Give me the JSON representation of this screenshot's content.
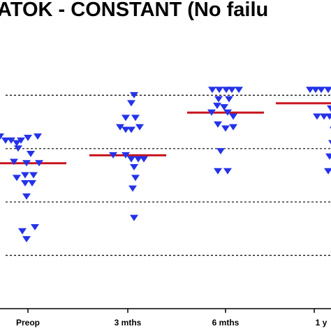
{
  "chart_data": {
    "type": "scatter",
    "title": "ATOK - CONSTANT (No failu",
    "categories": [
      "Preop",
      "3 mths",
      "6 mths",
      "1 y"
    ],
    "ylim": [
      0,
      100
    ],
    "gridlines": [
      20,
      40,
      60,
      80
    ],
    "grid": "dashed horizontal",
    "marker": "down-triangle",
    "colors": {
      "points": "#2433e8",
      "median": "#c8141e",
      "grid": "#000000",
      "axis": "#000000"
    },
    "series": [
      {
        "category": "Preop",
        "median": 54.5,
        "points": [
          {
            "x": -0.47,
            "y": 64.5
          },
          {
            "x": -0.4,
            "y": 64.5
          },
          {
            "x": -0.32,
            "y": 63
          },
          {
            "x": -0.24,
            "y": 63
          },
          {
            "x": -0.16,
            "y": 62
          },
          {
            "x": -0.1,
            "y": 63
          },
          {
            "x": 0.0,
            "y": 64
          },
          {
            "x": 0.14,
            "y": 64.5
          },
          {
            "x": -0.14,
            "y": 60
          },
          {
            "x": 0.04,
            "y": 58
          },
          {
            "x": -0.2,
            "y": 55
          },
          {
            "x": -0.02,
            "y": 54.5
          },
          {
            "x": 0.16,
            "y": 54.5
          },
          {
            "x": -0.04,
            "y": 50
          },
          {
            "x": 0.08,
            "y": 50
          },
          {
            "x": -0.16,
            "y": 49
          },
          {
            "x": -0.04,
            "y": 47
          },
          {
            "x": 0.06,
            "y": 47
          },
          {
            "x": -0.02,
            "y": 42
          },
          {
            "x": 0.1,
            "y": 30.5
          },
          {
            "x": -0.08,
            "y": 29
          },
          {
            "x": -0.02,
            "y": 26
          }
        ]
      },
      {
        "category": "3 mths",
        "median": 57.5,
        "points": [
          {
            "x": 0.09,
            "y": 80
          },
          {
            "x": 0.05,
            "y": 77
          },
          {
            "x": -0.03,
            "y": 71.5
          },
          {
            "x": 0.11,
            "y": 71.5
          },
          {
            "x": -0.11,
            "y": 68
          },
          {
            "x": -0.03,
            "y": 67
          },
          {
            "x": 0.05,
            "y": 67
          },
          {
            "x": 0.17,
            "y": 68
          },
          {
            "x": -0.21,
            "y": 57.5
          },
          {
            "x": -0.03,
            "y": 57.5
          },
          {
            "x": 0.05,
            "y": 56
          },
          {
            "x": 0.15,
            "y": 56
          },
          {
            "x": 0.23,
            "y": 56
          },
          {
            "x": 0.09,
            "y": 53
          },
          {
            "x": 0.11,
            "y": 49
          },
          {
            "x": 0.07,
            "y": 45
          },
          {
            "x": 0.09,
            "y": 34
          }
        ]
      },
      {
        "category": "6 mths",
        "median": 73.5,
        "points": [
          {
            "x": -0.19,
            "y": 82
          },
          {
            "x": -0.09,
            "y": 82
          },
          {
            "x": 0.01,
            "y": 82
          },
          {
            "x": 0.09,
            "y": 82
          },
          {
            "x": 0.19,
            "y": 82
          },
          {
            "x": -0.1,
            "y": 78.5
          },
          {
            "x": 0.05,
            "y": 78.5
          },
          {
            "x": -0.12,
            "y": 76
          },
          {
            "x": -0.02,
            "y": 75.5
          },
          {
            "x": -0.2,
            "y": 73.5
          },
          {
            "x": 0.03,
            "y": 73.5
          },
          {
            "x": 0.11,
            "y": 72
          },
          {
            "x": -0.11,
            "y": 69
          },
          {
            "x": 0.0,
            "y": 67.5
          },
          {
            "x": 0.11,
            "y": 68
          },
          {
            "x": -0.07,
            "y": 59
          },
          {
            "x": -0.11,
            "y": 51.5
          },
          {
            "x": 0.03,
            "y": 51.5
          }
        ]
      },
      {
        "category": "1 y",
        "median": 77,
        "points": [
          {
            "x": -0.06,
            "y": 82
          },
          {
            "x": 0.02,
            "y": 82
          },
          {
            "x": 0.1,
            "y": 82
          },
          {
            "x": 0.2,
            "y": 82
          },
          {
            "x": 0.32,
            "y": 78
          },
          {
            "x": 0.24,
            "y": 75
          },
          {
            "x": 0.04,
            "y": 72
          },
          {
            "x": 0.14,
            "y": 72
          },
          {
            "x": 0.22,
            "y": 72
          },
          {
            "x": 0.28,
            "y": 67
          },
          {
            "x": 0.26,
            "y": 62
          },
          {
            "x": 0.22,
            "y": 57
          },
          {
            "x": 0.2,
            "y": 51.5
          }
        ]
      }
    ]
  }
}
